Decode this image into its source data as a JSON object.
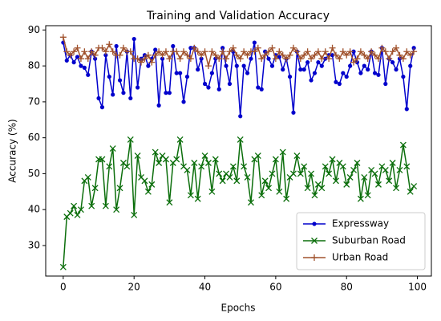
{
  "chart_data": {
    "type": "line",
    "title": "Training and Validation Accuracy",
    "xlabel": "Epochs",
    "ylabel": "Accuracy (%)",
    "x": [
      0,
      1,
      2,
      3,
      4,
      5,
      6,
      7,
      8,
      9,
      10,
      11,
      12,
      13,
      14,
      15,
      16,
      17,
      18,
      19,
      20,
      21,
      22,
      23,
      24,
      25,
      26,
      27,
      28,
      29,
      30,
      31,
      32,
      33,
      34,
      35,
      36,
      37,
      38,
      39,
      40,
      41,
      42,
      43,
      44,
      45,
      46,
      47,
      48,
      49,
      50,
      51,
      52,
      53,
      54,
      55,
      56,
      57,
      58,
      59,
      60,
      61,
      62,
      63,
      64,
      65,
      66,
      67,
      68,
      69,
      70,
      71,
      72,
      73,
      74,
      75,
      76,
      77,
      78,
      79,
      80,
      81,
      82,
      83,
      84,
      85,
      86,
      87,
      88,
      89,
      90,
      91,
      92,
      93,
      94,
      95,
      96,
      97,
      98,
      99
    ],
    "series": [
      {
        "name": "Expressway",
        "color": "#0000cc",
        "marker": "o",
        "values": [
          86.5,
          81.5,
          83,
          81,
          82.5,
          80,
          79.5,
          77.5,
          84,
          82,
          71,
          68.5,
          83,
          77,
          72,
          85.5,
          76,
          72.5,
          84,
          71,
          87.5,
          74,
          82,
          83,
          80,
          82,
          84.5,
          69,
          82,
          72.5,
          72.5,
          85.5,
          78,
          78,
          70,
          77,
          85,
          85,
          79,
          82,
          75,
          74,
          78,
          82,
          73.5,
          85,
          80,
          75,
          84,
          80,
          66,
          80,
          78,
          82,
          86.5,
          74,
          73.5,
          84,
          82,
          80,
          83,
          82.5,
          79,
          82,
          77,
          67,
          84,
          79,
          79,
          81,
          76,
          78,
          81,
          80,
          82,
          83,
          83,
          75.5,
          75,
          78,
          77,
          80,
          84,
          81,
          78,
          80,
          79,
          84,
          78,
          77.5,
          85,
          75,
          82,
          81,
          79,
          82,
          77,
          68,
          80,
          85
        ]
      },
      {
        "name": "Suburban Road",
        "color": "#0b6e0b",
        "marker": "x",
        "values": [
          24,
          38,
          39,
          41,
          38.5,
          40,
          48,
          49,
          41,
          46,
          54,
          54,
          41,
          52,
          57,
          40,
          46,
          53,
          52,
          59.5,
          38.5,
          55,
          49,
          48,
          45,
          47,
          56,
          53,
          55,
          54,
          42,
          53,
          54,
          59.5,
          52,
          51,
          44,
          53,
          43,
          52,
          55,
          53,
          45,
          54,
          50,
          48,
          50,
          49,
          52,
          48,
          59.5,
          52,
          49,
          42,
          54,
          55,
          44,
          48,
          46,
          50,
          54,
          45,
          56,
          43,
          49,
          50,
          55,
          50,
          52,
          46,
          50,
          44,
          47,
          46,
          52,
          50,
          54,
          48,
          53,
          52,
          47,
          49,
          51,
          53,
          43,
          49,
          44,
          51,
          50,
          47,
          52,
          51,
          48,
          53,
          46,
          51,
          58,
          52,
          45,
          46.5
        ]
      },
      {
        "name": "Urban Road",
        "color": "#a0522d",
        "marker": "+",
        "values": [
          88,
          84,
          83,
          84,
          85,
          82,
          84,
          82,
          84,
          83,
          85,
          85,
          84,
          86,
          84,
          83,
          83,
          85,
          84,
          84,
          82,
          82,
          81,
          82,
          83,
          81,
          83,
          84,
          83,
          84,
          82,
          84,
          84,
          82,
          84,
          83,
          82,
          85,
          84,
          83,
          84,
          80,
          84,
          83,
          82,
          84,
          82,
          84,
          85,
          83,
          82,
          84,
          83,
          84,
          84,
          85,
          82,
          83,
          84,
          85,
          82,
          84,
          83,
          82,
          83,
          85,
          84,
          82,
          83,
          84,
          82,
          83,
          84,
          82,
          84,
          82,
          85,
          83,
          82,
          84,
          83,
          84,
          81,
          82,
          84,
          83,
          82,
          84,
          83,
          82,
          85,
          84,
          82,
          84,
          85,
          83,
          82,
          84,
          83,
          84
        ]
      }
    ],
    "xlim": [
      -4.95,
      103.95
    ],
    "xticks": [
      0,
      20,
      40,
      60,
      80,
      100
    ],
    "ylim": [
      21.5,
      91.2
    ],
    "yticks": [
      30,
      40,
      50,
      60,
      70,
      80,
      90
    ],
    "legend": "lower right",
    "grid": false
  }
}
